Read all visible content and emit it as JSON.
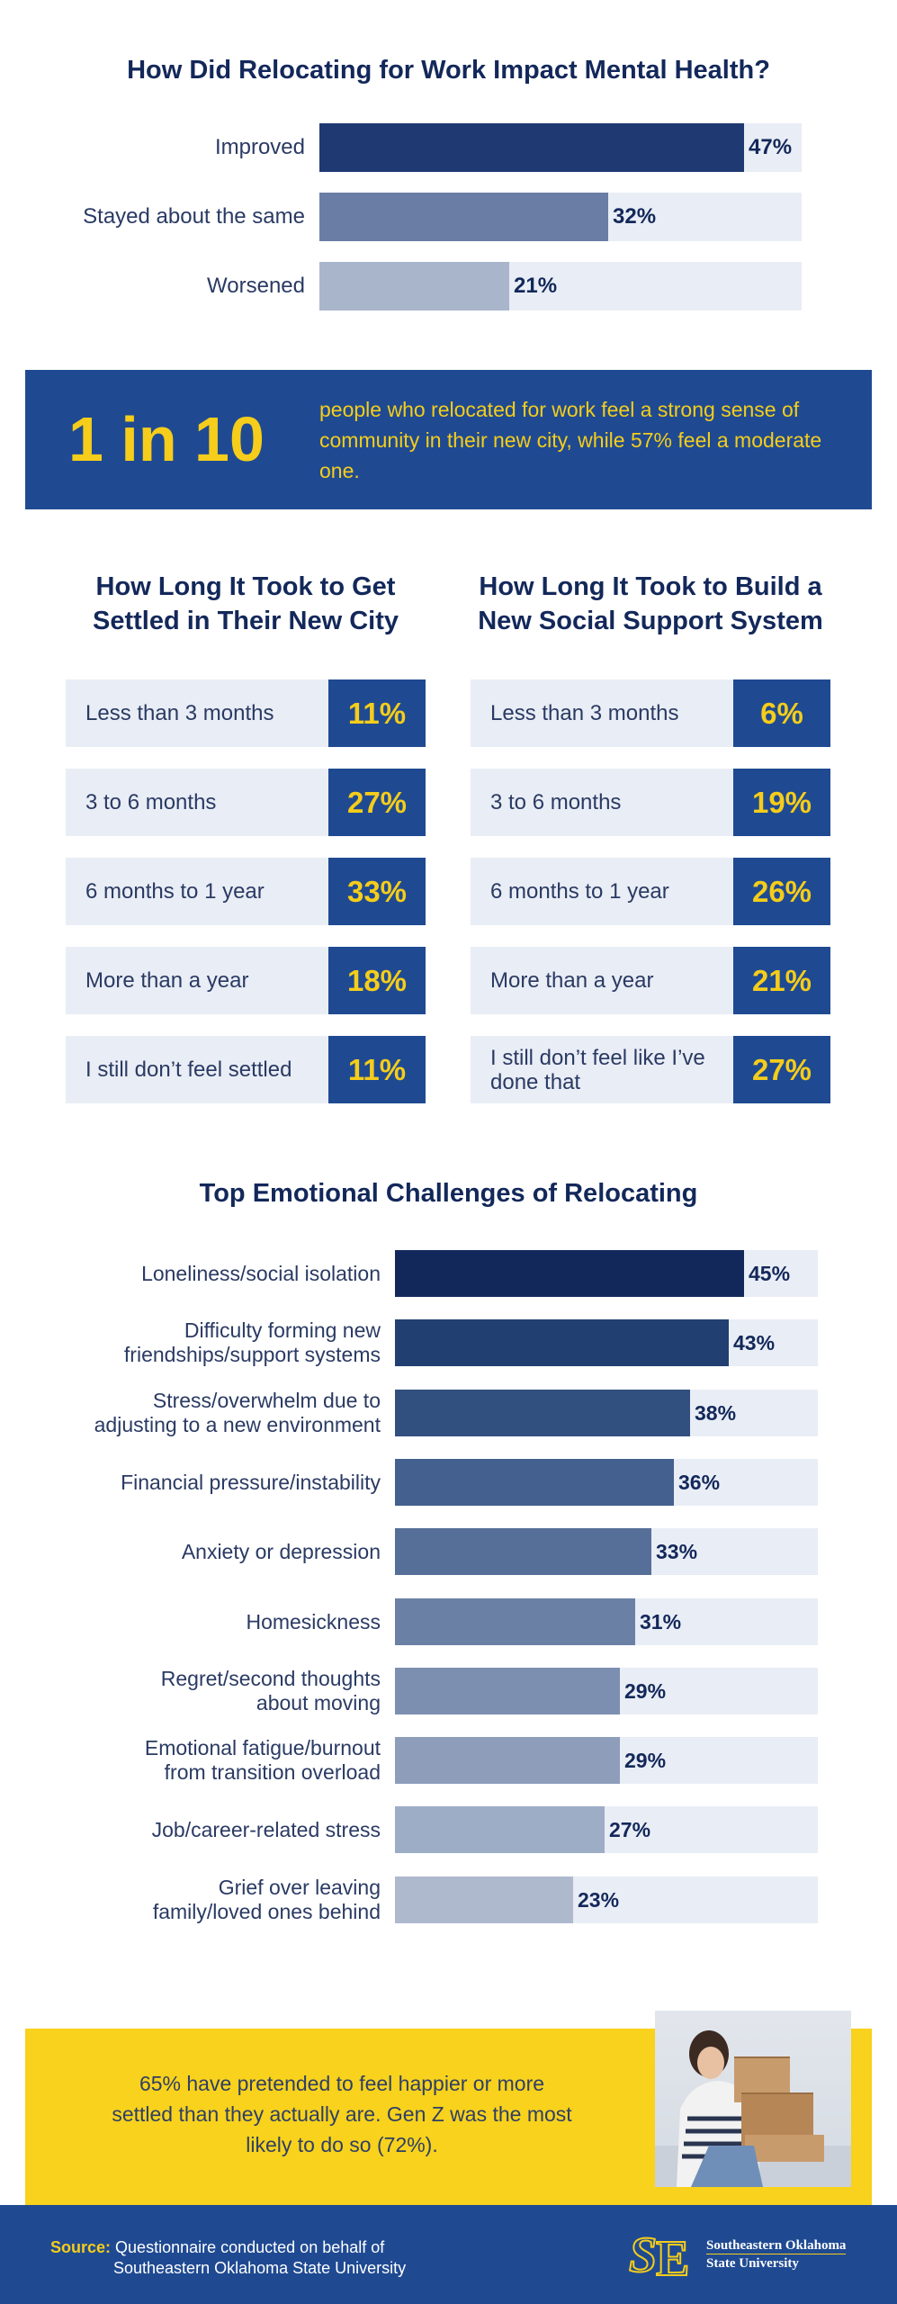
{
  "mental_health": {
    "title": "How Did Relocating for Work Impact Mental Health?"
  },
  "stat_banner": {
    "big": "1 in 10",
    "text": "people who relocated for work feel a strong sense of community in their new city, while 57% feel a moderate one."
  },
  "settled": {
    "title_line1": "How Long It Took to Get",
    "title_line2": "Settled in Their New City"
  },
  "support": {
    "title_line1": "How Long It Took to Build a",
    "title_line2": "New Social Support System"
  },
  "challenges": {
    "title": "Top Emotional Challenges of Relocating"
  },
  "callout": {
    "text": "65% have pretended to feel happier or more settled than they actually are. Gen Z was the most likely to do so (72%)."
  },
  "footer": {
    "source_key": "Source:",
    "source_line1": "Questionnaire conducted on behalf of",
    "source_line2": "Southeastern Oklahoma State University",
    "logo_line1": "Southeastern Oklahoma",
    "logo_line2": "State University"
  },
  "colors": {
    "navy": "#13285a",
    "banner_blue": "#1f4a92",
    "yellow": "#f5cd1a",
    "track": "#e9edf5"
  },
  "chart_data": [
    {
      "type": "bar",
      "orientation": "horizontal",
      "title": "How Did Relocating for Work Impact Mental Health?",
      "categories": [
        "Improved",
        "Stayed about the same",
        "Worsened"
      ],
      "values": [
        47,
        32,
        21
      ],
      "value_labels": [
        "47%",
        "32%",
        "21%"
      ],
      "xlim": [
        0,
        100
      ],
      "colors": [
        "#1f3a72",
        "#6a7da5",
        "#a9b5ca"
      ]
    },
    {
      "type": "table",
      "title": "How Long It Took to Get Settled in Their New City",
      "categories": [
        "Less than 3 months",
        "3 to 6 months",
        "6 months to 1 year",
        "More than a year",
        "I still don’t feel settled"
      ],
      "values": [
        11,
        27,
        33,
        18,
        11
      ],
      "value_labels": [
        "11%",
        "27%",
        "33%",
        "18%",
        "11%"
      ]
    },
    {
      "type": "table",
      "title": "How Long It Took to Build a New Social Support System",
      "categories": [
        "Less than 3 months",
        "3 to 6 months",
        "6 months to 1 year",
        "More than a year",
        "I still don’t feel like I’ve done that"
      ],
      "values": [
        6,
        19,
        26,
        21,
        27
      ],
      "value_labels": [
        "6%",
        "19%",
        "26%",
        "21%",
        "27%"
      ]
    },
    {
      "type": "bar",
      "orientation": "horizontal",
      "title": "Top Emotional Challenges of Relocating",
      "categories": [
        [
          "Loneliness/social isolation"
        ],
        [
          "Difficulty forming new",
          "friendships/support systems"
        ],
        [
          "Stress/overwhelm due to",
          "adjusting to a new environment"
        ],
        [
          "Financial pressure/instability"
        ],
        [
          "Anxiety or depression"
        ],
        [
          "Homesickness"
        ],
        [
          "Regret/second thoughts",
          "about moving"
        ],
        [
          "Emotional fatigue/burnout",
          "from transition overload"
        ],
        [
          "Job/career-related stress"
        ],
        [
          "Grief over leaving",
          "family/loved ones behind"
        ]
      ],
      "values": [
        45,
        43,
        38,
        36,
        33,
        31,
        29,
        29,
        27,
        23
      ],
      "value_labels": [
        "45%",
        "43%",
        "38%",
        "36%",
        "33%",
        "31%",
        "29%",
        "29%",
        "27%",
        "23%"
      ],
      "xlim": [
        0,
        55
      ],
      "colors": [
        "#13285a",
        "#223f72",
        "#31507f",
        "#43608e",
        "#566f98",
        "#6b80a5",
        "#7d8fb0",
        "#8d9dba",
        "#9eadc6",
        "#aeb9cd"
      ]
    }
  ]
}
